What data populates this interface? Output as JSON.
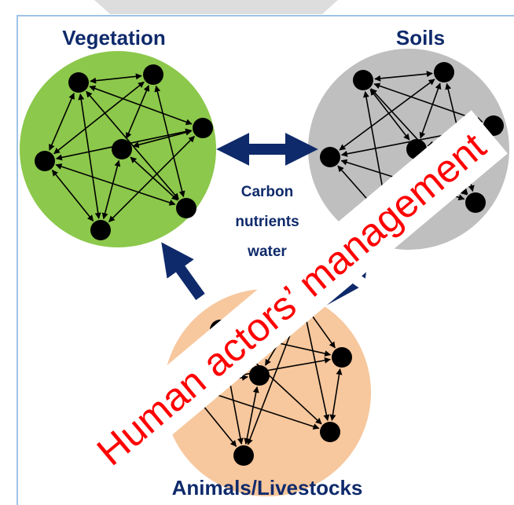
{
  "nodes": [
    {
      "label": "Vegetation"
    },
    {
      "label": "Soils"
    },
    {
      "label": "Animals/Livestocks"
    }
  ],
  "flow_label": [
    "Carbon",
    "nutrients",
    "water"
  ],
  "banner": "Human actors’ management"
}
